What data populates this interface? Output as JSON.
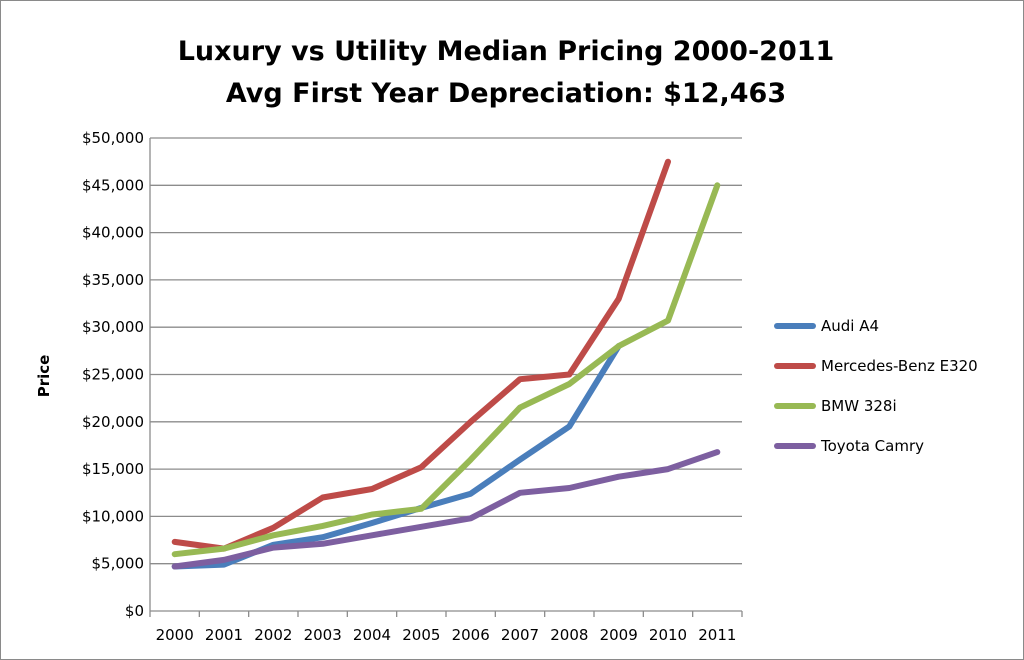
{
  "chart_data": {
    "type": "line",
    "title": "Luxury vs Utility Median Pricing 2000-2011",
    "subtitle": "Avg First Year Depreciation: $12,463",
    "xlabel": "",
    "ylabel": "Price",
    "categories": [
      "2000",
      "2001",
      "2002",
      "2003",
      "2004",
      "2005",
      "2006",
      "2007",
      "2008",
      "2009",
      "2010",
      "2011"
    ],
    "ylim": [
      0,
      50000
    ],
    "yticks": [
      0,
      5000,
      10000,
      15000,
      20000,
      25000,
      30000,
      35000,
      40000,
      45000,
      50000
    ],
    "ytick_labels": [
      "$0",
      "$5,000",
      "$10,000",
      "$15,000",
      "$20,000",
      "$25,000",
      "$30,000",
      "$35,000",
      "$40,000",
      "$45,000",
      "$50,000"
    ],
    "grid": true,
    "legend_position": "right",
    "series": [
      {
        "name": "Audi A4",
        "color": "#4a7ebb",
        "values": [
          4700,
          4900,
          7000,
          7800,
          9300,
          10900,
          12400,
          16000,
          19500,
          28000,
          null,
          null
        ]
      },
      {
        "name": "Mercedes-Benz E320",
        "color": "#be4b48",
        "values": [
          7300,
          6600,
          8800,
          12000,
          12900,
          15200,
          20000,
          24500,
          25000,
          33000,
          47500,
          null
        ]
      },
      {
        "name": "BMW 328i",
        "color": "#98b954",
        "values": [
          6000,
          6600,
          8000,
          9000,
          10200,
          10800,
          16000,
          21500,
          24000,
          28000,
          30700,
          45000
        ]
      },
      {
        "name": "Toyota Camry",
        "color": "#7d5fa0",
        "values": [
          4700,
          5400,
          6700,
          7100,
          8000,
          8900,
          9800,
          12500,
          13000,
          14200,
          15000,
          16800
        ]
      }
    ]
  }
}
